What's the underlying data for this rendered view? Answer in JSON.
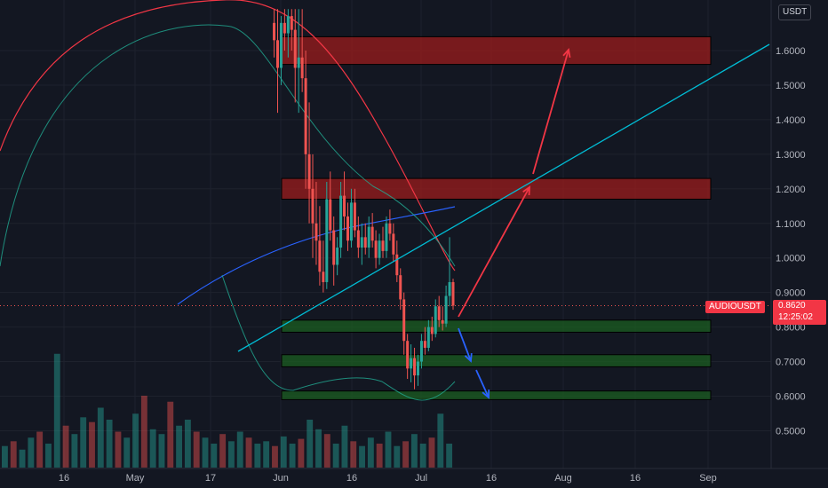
{
  "chart": {
    "currency": "USDT",
    "symbol": "AUDIOUSDT",
    "last_price": "0.8620",
    "countdown": "12:25:02",
    "colors": {
      "background": "#131722",
      "up": "#26a69a",
      "down": "#ef5350",
      "ma_red": "#f23645",
      "bb_band": "#22ab94",
      "ma_blue": "#2962ff",
      "trendline": "#00bcd4",
      "resistance_zone": "#9b1c1c",
      "support_zone": "#1b5e20",
      "up_arrow": "#f23645",
      "down_arrow": "#2962ff"
    }
  },
  "chart_data": {
    "type": "candlestick",
    "y_ticks": [
      "1.6000",
      "1.5000",
      "1.4000",
      "1.3000",
      "1.2000",
      "1.1000",
      "1.0000",
      "0.9000",
      "0.8000",
      "0.7000",
      "0.6000",
      "0.5000"
    ],
    "x_ticks": [
      "16",
      "May",
      "17",
      "Jun",
      "16",
      "Jul",
      "16",
      "Aug",
      "16",
      "Sep"
    ],
    "ylim": [
      0.45,
      1.72
    ],
    "zones": [
      {
        "kind": "resistance",
        "low": 1.56,
        "high": 1.64
      },
      {
        "kind": "resistance",
        "low": 1.17,
        "high": 1.23
      },
      {
        "kind": "support",
        "low": 0.785,
        "high": 0.82
      },
      {
        "kind": "support",
        "low": 0.685,
        "high": 0.72
      },
      {
        "kind": "support",
        "low": 0.59,
        "high": 0.615
      }
    ],
    "candles": [
      {
        "o": 1.68,
        "h": 1.72,
        "l": 1.58,
        "c": 1.63
      },
      {
        "o": 1.63,
        "h": 1.72,
        "l": 1.42,
        "c": 1.55
      },
      {
        "o": 1.55,
        "h": 1.7,
        "l": 1.5,
        "c": 1.68
      },
      {
        "o": 1.68,
        "h": 1.72,
        "l": 1.6,
        "c": 1.65
      },
      {
        "o": 1.65,
        "h": 1.72,
        "l": 1.58,
        "c": 1.7
      },
      {
        "o": 1.7,
        "h": 1.72,
        "l": 1.6,
        "c": 1.66
      },
      {
        "o": 1.66,
        "h": 1.72,
        "l": 1.45,
        "c": 1.55
      },
      {
        "o": 1.55,
        "h": 1.72,
        "l": 1.42,
        "c": 1.58
      },
      {
        "o": 1.58,
        "h": 1.72,
        "l": 1.48,
        "c": 1.52
      },
      {
        "o": 1.52,
        "h": 1.6,
        "l": 1.2,
        "c": 1.3
      },
      {
        "o": 1.3,
        "h": 1.45,
        "l": 1.1,
        "c": 1.2
      },
      {
        "o": 1.2,
        "h": 1.3,
        "l": 1.0,
        "c": 1.1
      },
      {
        "o": 1.1,
        "h": 1.22,
        "l": 0.98,
        "c": 1.05
      },
      {
        "o": 1.05,
        "h": 1.15,
        "l": 0.92,
        "c": 0.96
      },
      {
        "o": 0.96,
        "h": 1.05,
        "l": 0.9,
        "c": 0.93
      },
      {
        "o": 0.93,
        "h": 1.22,
        "l": 0.91,
        "c": 1.17
      },
      {
        "o": 1.17,
        "h": 1.25,
        "l": 1.05,
        "c": 1.08
      },
      {
        "o": 1.08,
        "h": 1.12,
        "l": 0.92,
        "c": 0.98
      },
      {
        "o": 0.98,
        "h": 1.06,
        "l": 0.95,
        "c": 1.03
      },
      {
        "o": 1.03,
        "h": 1.22,
        "l": 1.0,
        "c": 1.18
      },
      {
        "o": 1.18,
        "h": 1.25,
        "l": 1.08,
        "c": 1.12
      },
      {
        "o": 1.12,
        "h": 1.16,
        "l": 1.02,
        "c": 1.05
      },
      {
        "o": 1.05,
        "h": 1.2,
        "l": 1.03,
        "c": 1.16
      },
      {
        "o": 1.16,
        "h": 1.2,
        "l": 1.06,
        "c": 1.08
      },
      {
        "o": 1.08,
        "h": 1.12,
        "l": 1.0,
        "c": 1.03
      },
      {
        "o": 1.03,
        "h": 1.1,
        "l": 0.98,
        "c": 1.06
      },
      {
        "o": 1.06,
        "h": 1.1,
        "l": 1.01,
        "c": 1.03
      },
      {
        "o": 1.03,
        "h": 1.12,
        "l": 1.0,
        "c": 1.09
      },
      {
        "o": 1.09,
        "h": 1.13,
        "l": 1.03,
        "c": 1.05
      },
      {
        "o": 1.05,
        "h": 1.08,
        "l": 0.97,
        "c": 1.0
      },
      {
        "o": 1.0,
        "h": 1.07,
        "l": 0.98,
        "c": 1.05
      },
      {
        "o": 1.05,
        "h": 1.09,
        "l": 1.0,
        "c": 1.02
      },
      {
        "o": 1.02,
        "h": 1.12,
        "l": 1.0,
        "c": 1.1
      },
      {
        "o": 1.1,
        "h": 1.14,
        "l": 1.05,
        "c": 1.07
      },
      {
        "o": 1.07,
        "h": 1.1,
        "l": 0.99,
        "c": 1.01
      },
      {
        "o": 1.01,
        "h": 1.05,
        "l": 0.93,
        "c": 0.95
      },
      {
        "o": 0.95,
        "h": 0.97,
        "l": 0.85,
        "c": 0.88
      },
      {
        "o": 0.88,
        "h": 0.9,
        "l": 0.72,
        "c": 0.76
      },
      {
        "o": 0.76,
        "h": 0.78,
        "l": 0.65,
        "c": 0.68
      },
      {
        "o": 0.68,
        "h": 0.75,
        "l": 0.64,
        "c": 0.71
      },
      {
        "o": 0.71,
        "h": 0.74,
        "l": 0.62,
        "c": 0.66
      },
      {
        "o": 0.66,
        "h": 0.72,
        "l": 0.63,
        "c": 0.7
      },
      {
        "o": 0.7,
        "h": 0.78,
        "l": 0.68,
        "c": 0.76
      },
      {
        "o": 0.76,
        "h": 0.8,
        "l": 0.72,
        "c": 0.74
      },
      {
        "o": 0.74,
        "h": 0.82,
        "l": 0.73,
        "c": 0.8
      },
      {
        "o": 0.8,
        "h": 0.83,
        "l": 0.76,
        "c": 0.78
      },
      {
        "o": 0.78,
        "h": 0.88,
        "l": 0.77,
        "c": 0.86
      },
      {
        "o": 0.86,
        "h": 0.89,
        "l": 0.8,
        "c": 0.82
      },
      {
        "o": 0.82,
        "h": 0.86,
        "l": 0.79,
        "c": 0.81
      },
      {
        "o": 0.81,
        "h": 0.92,
        "l": 0.8,
        "c": 0.89
      },
      {
        "o": 0.89,
        "h": 1.06,
        "l": 0.86,
        "c": 0.93
      },
      {
        "o": 0.93,
        "h": 0.94,
        "l": 0.85,
        "c": 0.862
      }
    ],
    "volume": [
      18,
      22,
      15,
      25,
      30,
      20,
      95,
      35,
      28,
      42,
      38,
      50,
      40,
      30,
      25,
      45,
      60,
      32,
      28,
      55,
      35,
      40,
      30,
      25,
      20,
      28,
      22,
      30,
      25,
      20,
      22,
      18,
      26,
      20,
      24,
      40,
      32,
      28,
      20,
      35,
      22,
      18,
      25,
      20,
      30,
      18,
      22,
      28,
      20,
      25,
      45,
      20
    ]
  }
}
